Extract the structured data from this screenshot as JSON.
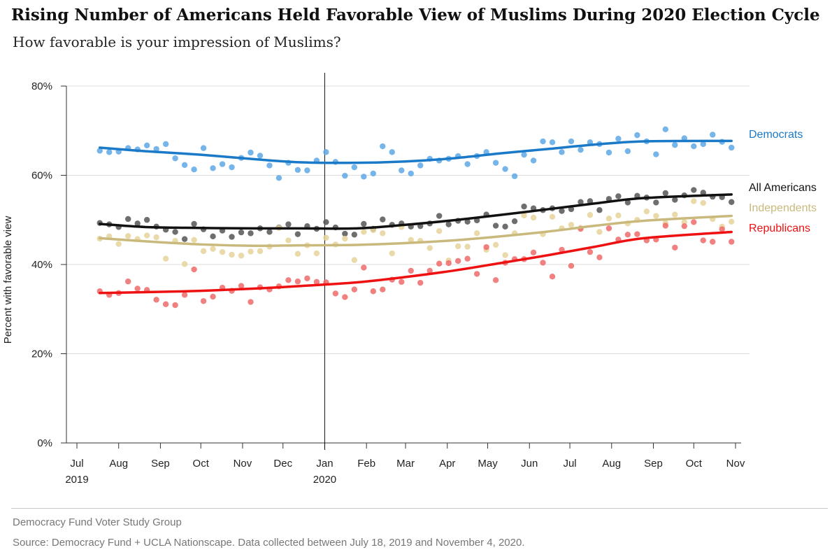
{
  "header": {
    "title": "Rising Number of Americans Held Favorable View of Muslims During 2020 Election Cycle",
    "subtitle": "How favorable is your impression of Muslims?"
  },
  "footer": {
    "org": "Democracy Fund Voter Study Group",
    "source": "Source: Democracy Fund + UCLA Nationscape. Data collected between July 18, 2019 and November 4, 2020."
  },
  "chart_data": {
    "type": "scatter",
    "title": "Rising Number of Americans Held Favorable View of Muslims During 2020 Election Cycle",
    "subtitle": "How favorable is your impression of Muslims?",
    "ylabel": "Percent with favorable view",
    "xlabel": "",
    "ylim": [
      0,
      80
    ],
    "yticks": [
      {
        "value": 0,
        "label": "0%"
      },
      {
        "value": 20,
        "label": "20%"
      },
      {
        "value": 40,
        "label": "40%"
      },
      {
        "value": 60,
        "label": "60%"
      },
      {
        "value": 80,
        "label": "80%"
      }
    ],
    "xlim": [
      "2019-07-01",
      "2020-11-01"
    ],
    "xticks": [
      {
        "date": "2019-07-01",
        "label": "Jul",
        "sublabel": "2019"
      },
      {
        "date": "2019-08-01",
        "label": "Aug",
        "sublabel": ""
      },
      {
        "date": "2019-09-01",
        "label": "Sep",
        "sublabel": ""
      },
      {
        "date": "2019-10-01",
        "label": "Oct",
        "sublabel": ""
      },
      {
        "date": "2019-11-01",
        "label": "Nov",
        "sublabel": ""
      },
      {
        "date": "2019-12-01",
        "label": "Dec",
        "sublabel": ""
      },
      {
        "date": "2020-01-01",
        "label": "Jan",
        "sublabel": "2020"
      },
      {
        "date": "2020-02-01",
        "label": "Feb",
        "sublabel": ""
      },
      {
        "date": "2020-03-01",
        "label": "Mar",
        "sublabel": ""
      },
      {
        "date": "2020-04-01",
        "label": "Apr",
        "sublabel": ""
      },
      {
        "date": "2020-05-01",
        "label": "May",
        "sublabel": ""
      },
      {
        "date": "2020-06-01",
        "label": "Jun",
        "sublabel": ""
      },
      {
        "date": "2020-07-01",
        "label": "Jul",
        "sublabel": ""
      },
      {
        "date": "2020-08-01",
        "label": "Aug",
        "sublabel": ""
      },
      {
        "date": "2020-09-01",
        "label": "Sep",
        "sublabel": ""
      },
      {
        "date": "2020-10-01",
        "label": "Oct",
        "sublabel": ""
      },
      {
        "date": "2020-11-01",
        "label": "Nov",
        "sublabel": ""
      }
    ],
    "reference_line": "2020-01-01",
    "grid": "horizontal",
    "legend": "direct labels at right",
    "x": [
      "2019-07-18",
      "2019-07-25",
      "2019-08-01",
      "2019-08-08",
      "2019-08-15",
      "2019-08-22",
      "2019-08-29",
      "2019-09-05",
      "2019-09-12",
      "2019-09-19",
      "2019-09-26",
      "2019-10-03",
      "2019-10-10",
      "2019-10-17",
      "2019-10-24",
      "2019-10-31",
      "2019-11-07",
      "2019-11-14",
      "2019-11-21",
      "2019-11-28",
      "2019-12-05",
      "2019-12-12",
      "2019-12-19",
      "2019-12-26",
      "2020-01-02",
      "2020-01-09",
      "2020-01-16",
      "2020-01-23",
      "2020-01-30",
      "2020-02-06",
      "2020-02-13",
      "2020-02-20",
      "2020-02-27",
      "2020-03-05",
      "2020-03-12",
      "2020-03-19",
      "2020-03-26",
      "2020-04-02",
      "2020-04-09",
      "2020-04-16",
      "2020-04-23",
      "2020-04-30",
      "2020-05-07",
      "2020-05-14",
      "2020-05-21",
      "2020-05-28",
      "2020-06-04",
      "2020-06-11",
      "2020-06-18",
      "2020-06-25",
      "2020-07-02",
      "2020-07-09",
      "2020-07-16",
      "2020-07-23",
      "2020-07-30",
      "2020-08-06",
      "2020-08-13",
      "2020-08-20",
      "2020-08-27",
      "2020-09-03",
      "2020-09-10",
      "2020-09-17",
      "2020-09-24",
      "2020-10-01",
      "2020-10-08",
      "2020-10-15",
      "2020-10-22",
      "2020-10-29"
    ],
    "series": [
      {
        "name": "Democrats",
        "color": "#1a7ac8",
        "point_color": "#5ea8e6",
        "values": [
          65.5,
          65.2,
          65.3,
          66.1,
          65.8,
          66.7,
          65.9,
          67.0,
          63.8,
          62.3,
          61.3,
          66.1,
          61.6,
          62.5,
          61.8,
          63.9,
          65.1,
          64.4,
          62.2,
          59.4,
          62.8,
          61.2,
          61.1,
          63.3,
          65.2,
          63.0,
          59.9,
          61.8,
          59.7,
          60.4,
          66.5,
          65.2,
          61.1,
          60.4,
          62.2,
          63.7,
          63.3,
          63.7,
          64.3,
          62.5,
          64.3,
          65.2,
          62.8,
          61.4,
          59.8,
          64.6,
          63.3,
          67.6,
          67.4,
          65.2,
          67.6,
          65.7,
          67.4,
          67.0,
          65.1,
          68.2,
          65.4,
          69.0,
          67.6,
          64.7,
          70.3,
          66.8,
          68.3,
          66.5,
          67.0,
          69.1,
          67.5,
          66.2
        ],
        "trend": [
          66.2,
          65.4,
          64.6,
          63.6,
          62.9,
          62.8,
          63.1,
          63.8,
          64.9,
          65.9,
          66.9,
          67.6,
          67.7
        ]
      },
      {
        "name": "All Americans",
        "color": "#111111",
        "point_color": "#555555",
        "values": [
          49.3,
          49.0,
          48.4,
          50.2,
          49.2,
          50.0,
          48.5,
          47.8,
          47.3,
          45.7,
          49.1,
          47.9,
          46.3,
          47.6,
          46.2,
          47.2,
          47.0,
          48.1,
          47.3,
          48.3,
          49.0,
          46.8,
          48.6,
          48.0,
          49.5,
          48.3,
          46.9,
          46.7,
          49.1,
          48.0,
          50.1,
          48.9,
          49.2,
          48.5,
          48.6,
          49.2,
          50.9,
          49.0,
          49.8,
          49.6,
          49.9,
          51.2,
          48.7,
          48.5,
          49.7,
          53.0,
          52.6,
          52.2,
          52.6,
          52.0,
          52.4,
          54.0,
          54.2,
          52.2,
          54.7,
          55.3,
          53.9,
          55.4,
          55.0,
          53.9,
          56.0,
          54.5,
          55.5,
          56.7,
          56.1,
          55.2,
          55.1,
          54.0
        ],
        "trend": [
          49.1,
          48.4,
          48.2,
          48.1,
          48.1,
          48.1,
          48.9,
          49.9,
          51.1,
          52.4,
          53.7,
          54.9,
          55.7
        ]
      },
      {
        "name": "Independents",
        "color": "#c9b97d",
        "point_color": "#e6d49a",
        "values": [
          45.8,
          46.3,
          44.6,
          46.4,
          45.7,
          46.5,
          46.1,
          41.3,
          45.3,
          40.1,
          45.5,
          43.0,
          43.5,
          42.8,
          42.2,
          42.0,
          42.9,
          43.0,
          44.0,
          48.2,
          45.4,
          42.4,
          44.3,
          42.5,
          46.0,
          44.5,
          45.8,
          41.0,
          47.3,
          47.7,
          47.0,
          42.5,
          48.4,
          45.5,
          45.3,
          43.7,
          47.5,
          40.9,
          44.1,
          44.0,
          47.0,
          43.3,
          44.4,
          42.1,
          47.0,
          51.0,
          50.5,
          46.8,
          50.7,
          48.1,
          48.9,
          48.2,
          51.1,
          47.3,
          50.3,
          51.0,
          49.2,
          50.0,
          51.9,
          50.9,
          49.3,
          51.2,
          49.5,
          54.2,
          53.8,
          50.2,
          48.5,
          49.6
        ],
        "trend": [
          45.9,
          45.2,
          44.5,
          44.2,
          44.3,
          44.4,
          44.8,
          45.4,
          46.3,
          47.4,
          48.7,
          49.8,
          50.9
        ]
      },
      {
        "name": "Republicans",
        "color": "#ee1111",
        "point_color": "#ee6b6b",
        "values": [
          34.0,
          33.2,
          33.6,
          36.2,
          34.6,
          34.3,
          32.1,
          31.1,
          30.9,
          33.2,
          38.9,
          31.8,
          32.8,
          34.8,
          34.1,
          35.2,
          31.6,
          34.9,
          34.4,
          35.1,
          36.5,
          36.2,
          36.9,
          36.1,
          36.0,
          33.5,
          32.7,
          34.4,
          39.3,
          34.0,
          34.4,
          36.6,
          36.1,
          38.6,
          35.9,
          38.6,
          40.2,
          40.3,
          40.8,
          41.3,
          37.9,
          43.9,
          36.5,
          40.4,
          41.2,
          41.2,
          42.7,
          40.4,
          37.3,
          43.3,
          39.7,
          48.0,
          42.8,
          41.6,
          48.1,
          45.6,
          46.7,
          46.8,
          45.4,
          45.6,
          48.7,
          43.8,
          48.6,
          49.5,
          45.4,
          45.1,
          47.9,
          45.1
        ],
        "trend": [
          33.6,
          33.8,
          34.1,
          34.6,
          35.2,
          36.0,
          37.2,
          38.6,
          40.3,
          42.1,
          44.0,
          45.9,
          47.3
        ]
      }
    ],
    "trend_x": [
      "2019-07-18",
      "2019-08-21",
      "2019-10-01",
      "2019-11-10",
      "2019-12-15",
      "2020-01-25",
      "2020-03-01",
      "2020-04-05",
      "2020-05-10",
      "2020-06-15",
      "2020-07-20",
      "2020-08-25",
      "2020-10-29"
    ]
  }
}
